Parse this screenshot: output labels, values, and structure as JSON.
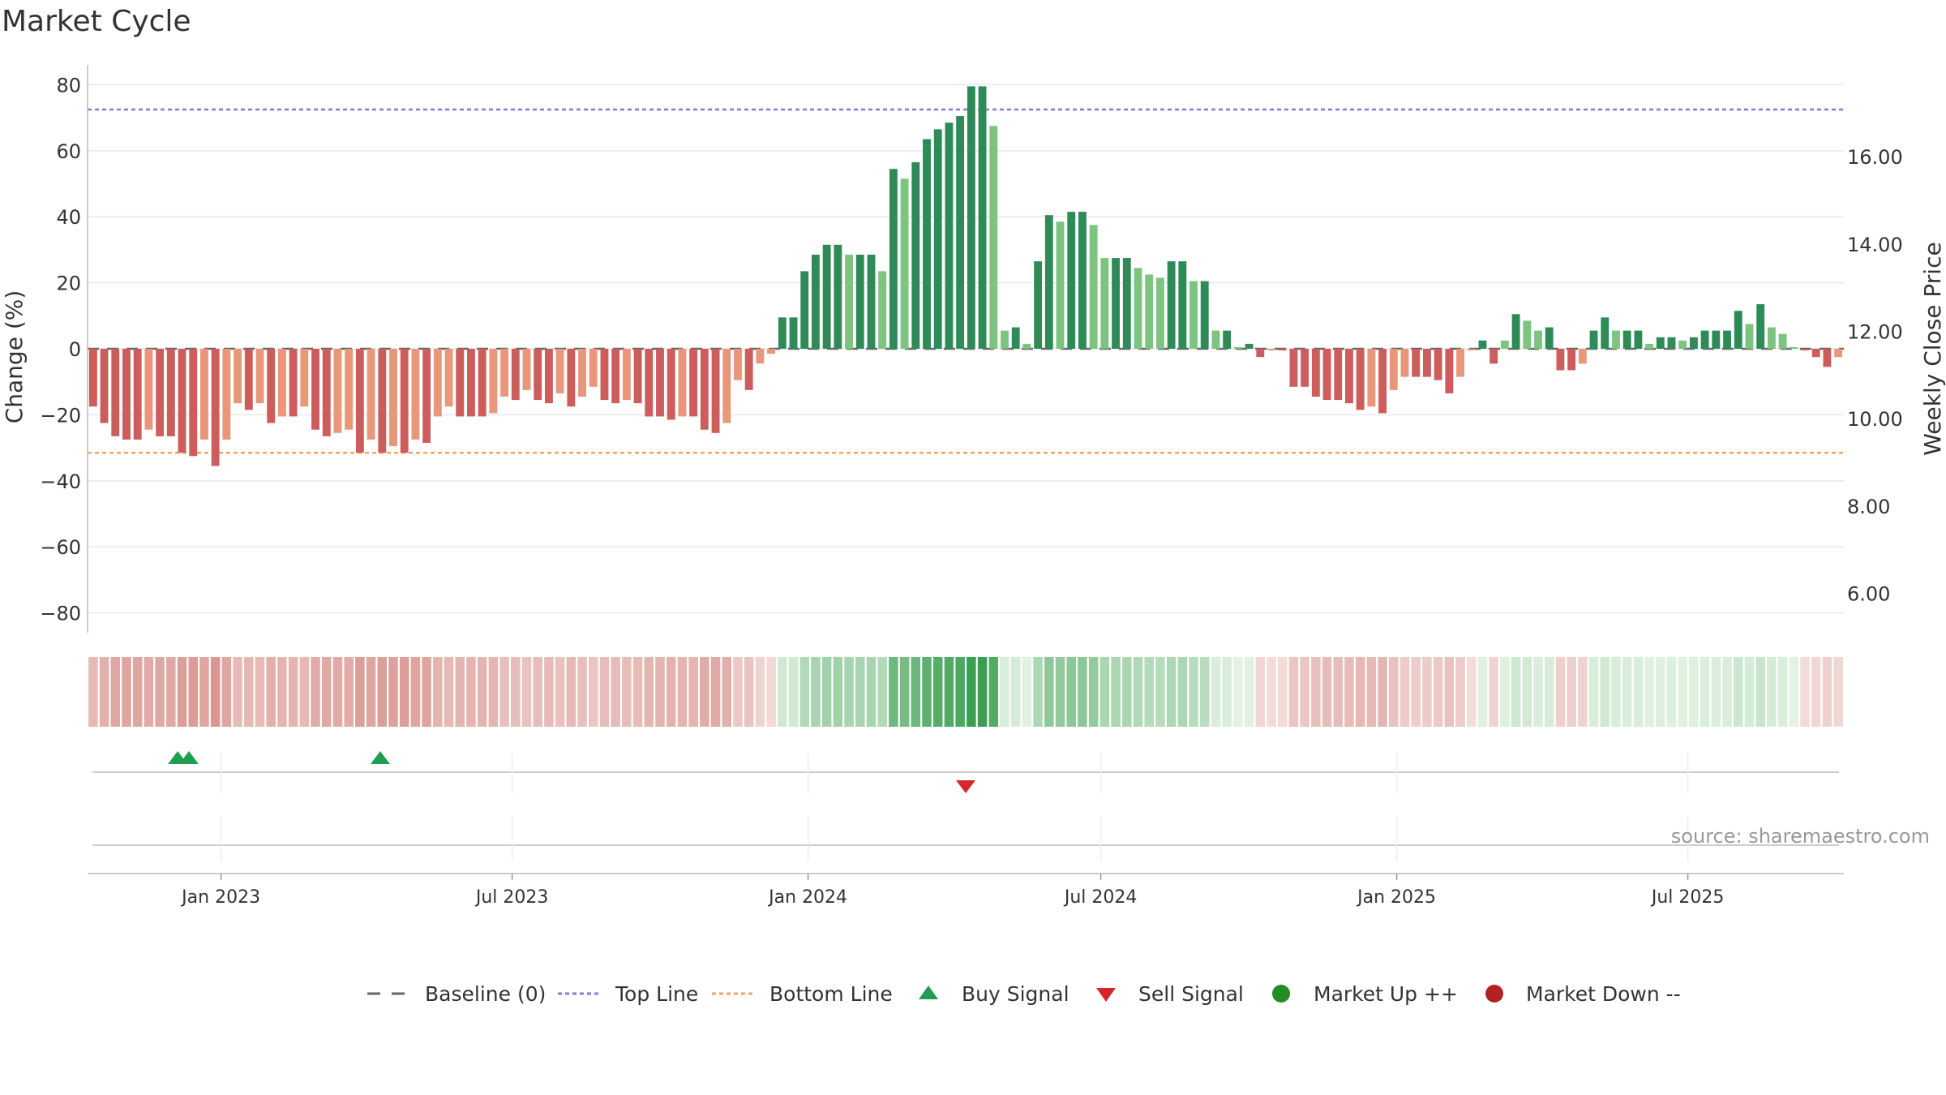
{
  "chart_data": {
    "type": "bar",
    "title": "Market Cycle",
    "ylabel": "Change (%)",
    "y2label": "Weekly Close Price",
    "ylim": [
      -86,
      86
    ],
    "y2lim": [
      5.1,
      18.1
    ],
    "yticks": [
      "80",
      "60",
      "40",
      "20",
      "0",
      "−20",
      "−40",
      "−60",
      "−80"
    ],
    "ytick_values": [
      80,
      60,
      40,
      20,
      0,
      -20,
      -40,
      -60,
      -80
    ],
    "y2ticks": [
      "16.00",
      "14.00",
      "12.00",
      "10.00",
      "8.00",
      "6.00"
    ],
    "y2tick_values": [
      16,
      14,
      12,
      10,
      8,
      6
    ],
    "x_start": "2022-10-10",
    "x_end": "2025-10-06",
    "xticks": [
      "Jan 2023",
      "Jul 2023",
      "Jan 2024",
      "Jul 2024",
      "Jan 2025",
      "Jul 2025"
    ],
    "xtick_dates": [
      "2023-01-01",
      "2023-07-01",
      "2024-01-01",
      "2024-07-01",
      "2025-01-01",
      "2025-07-01"
    ],
    "top_line": 72.5,
    "bottom_line": -31.5,
    "baseline": 0,
    "change_values": [
      -17.5,
      -22.5,
      -26.5,
      -27.5,
      -27.5,
      -24.5,
      -26.5,
      -26.5,
      -31.5,
      -32.5,
      -27.5,
      -35.5,
      -27.5,
      -16.5,
      -18.5,
      -16.5,
      -22.5,
      -20.5,
      -20.5,
      -17.5,
      -24.5,
      -26.5,
      -25.5,
      -24.5,
      -31.5,
      -27.5,
      -31.5,
      -29.5,
      -31.5,
      -27.5,
      -28.5,
      -20.5,
      -17.5,
      -20.5,
      -20.5,
      -20.5,
      -19.5,
      -14.5,
      -15.5,
      -12.5,
      -15.5,
      -16.5,
      -13.5,
      -17.5,
      -14.5,
      -11.5,
      -15.5,
      -16.5,
      -15.5,
      -16.5,
      -20.5,
      -20.5,
      -21.5,
      -20.5,
      -20.5,
      -24.5,
      -25.5,
      -22.5,
      -9.5,
      -12.5,
      -4.5,
      -1.5,
      9.5,
      9.5,
      23.5,
      28.5,
      31.5,
      31.5,
      28.5,
      28.5,
      28.5,
      23.5,
      54.5,
      51.5,
      56.5,
      63.5,
      66.5,
      68.5,
      70.5,
      79.5,
      79.5,
      67.5,
      5.5,
      6.5,
      1.5,
      26.5,
      40.5,
      38.5,
      41.5,
      41.5,
      37.5,
      27.5,
      27.5,
      27.5,
      24.5,
      22.5,
      21.5,
      26.5,
      26.5,
      20.5,
      20.5,
      5.5,
      5.5,
      0.5,
      1.5,
      -2.5,
      -0.5,
      -0.5,
      -11.5,
      -11.5,
      -14.5,
      -15.5,
      -15.5,
      -16.5,
      -18.5,
      -17.5,
      -19.5,
      -12.5,
      -8.5,
      -8.5,
      -8.5,
      -9.5,
      -13.5,
      -8.5,
      -0.5,
      2.5,
      -4.5,
      2.5,
      10.5,
      8.5,
      5.5,
      6.5,
      -6.5,
      -6.5,
      -4.5,
      5.5,
      9.5,
      5.5,
      5.5,
      5.5,
      1.5,
      3.5,
      3.5,
      2.5,
      3.5,
      5.5,
      5.5,
      5.5,
      11.5,
      7.5,
      13.5,
      6.5,
      4.5,
      0.5,
      -0.5,
      -2.5,
      -5.5,
      -2.5
    ],
    "buy_signal_dates": [
      "2022-12-05",
      "2022-12-12",
      "2023-04-10"
    ],
    "sell_signal_dates": [
      "2024-04-08"
    ],
    "legend": [
      "Baseline (0)",
      "Top Line",
      "Bottom Line",
      "Buy Signal",
      "Sell Signal",
      "Market Up ++",
      "Market Down --"
    ],
    "legend_position": "bottom-center",
    "colors": {
      "up_strong": "#2e8b57",
      "up_weak": "#7cc47f",
      "down_strong": "#cd5c5c",
      "down_weak": "#e9967a",
      "top_line": "#9370db",
      "bottom_line": "#f4a460",
      "buy": "#1e9e50",
      "sell": "#d62728",
      "market_up": "#228b22",
      "market_down": "#b22222",
      "baseline": "#666666"
    },
    "source": "source: sharemaestro.com"
  }
}
